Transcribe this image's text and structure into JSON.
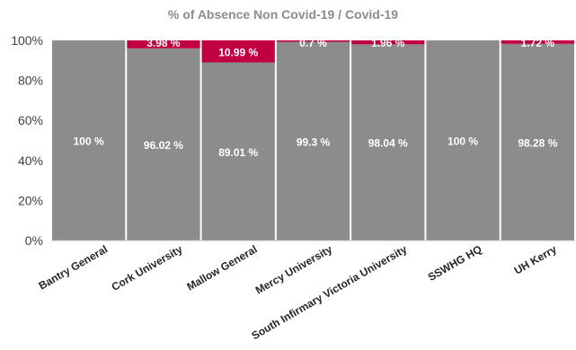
{
  "chart_data": {
    "type": "bar",
    "stacked": true,
    "title": "% of Absence Non Covid-19 / Covid-19",
    "categories": [
      "Bantry General",
      "Cork University",
      "Mallow General",
      "Mercy University",
      "South Infirmary Victoria University",
      "SSWHG HQ",
      "UH Kerry"
    ],
    "series": [
      {
        "values": [
          100,
          96.02,
          89.01,
          99.3,
          98.04,
          100,
          98.28
        ],
        "labels": [
          "100 %",
          "96.02 %",
          "89.01 %",
          "99.3 %",
          "98.04 %",
          "100 %",
          "98.28 %"
        ],
        "color": "#8c8c8c"
      },
      {
        "values": [
          0,
          3.98,
          10.99,
          0.7,
          1.96,
          0,
          1.72
        ],
        "labels": [
          "",
          "3.98 %",
          "10.99 %",
          "0.7 %",
          "1.96 %",
          "",
          "1.72 %"
        ],
        "color": "#c00040"
      }
    ],
    "ylim": [
      0,
      100
    ],
    "yticks": [
      "0%",
      "20%",
      "40%",
      "60%",
      "80%",
      "100%"
    ],
    "xlabel": "",
    "ylabel": "",
    "grid": false,
    "legend": "none"
  }
}
